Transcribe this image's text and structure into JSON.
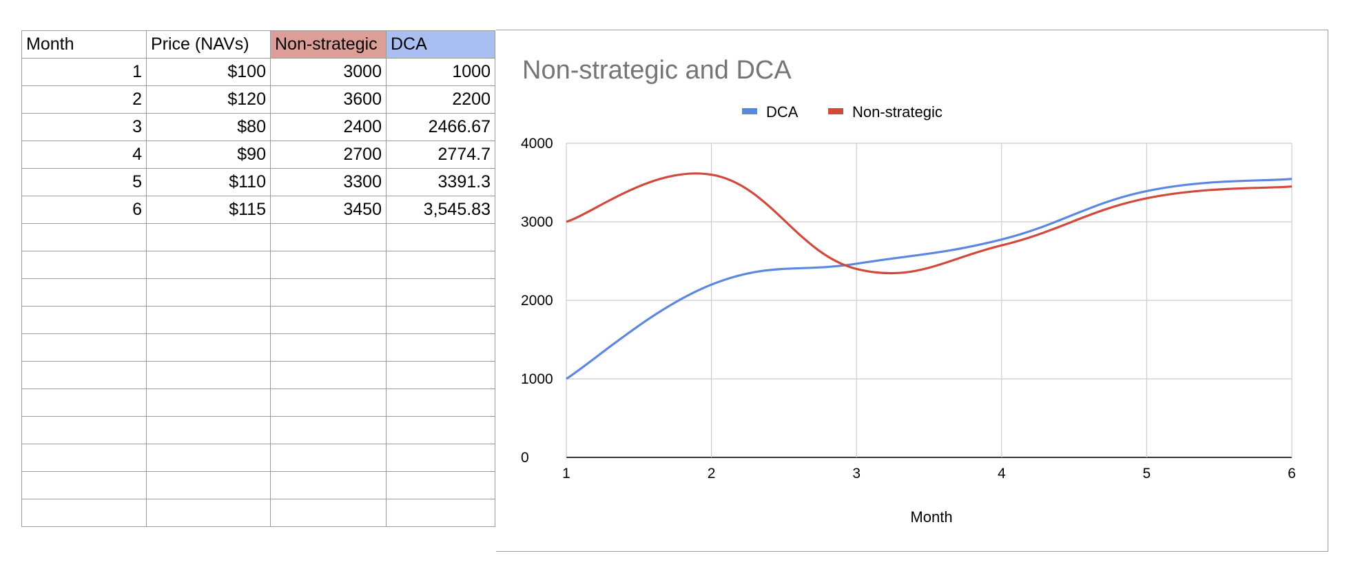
{
  "table": {
    "headers": [
      {
        "label": "Month",
        "bg": ""
      },
      {
        "label": "Price (NAVs)",
        "bg": ""
      },
      {
        "label": "Non-strategic",
        "bg": "#dd9e98"
      },
      {
        "label": "DCA",
        "bg": "#a9bff1"
      }
    ],
    "rows": [
      [
        "1",
        "$100",
        "3000",
        "1000"
      ],
      [
        "2",
        "$120",
        "3600",
        "2200"
      ],
      [
        "3",
        "$80",
        "2400",
        "2466.67"
      ],
      [
        "4",
        "$90",
        "2700",
        "2774.7"
      ],
      [
        "5",
        "$110",
        "3300",
        "3391.3"
      ],
      [
        "6",
        "$115",
        "3450",
        "3,545.83"
      ]
    ],
    "empty_rows": 11
  },
  "chart_data": {
    "type": "line",
    "title": "Non-strategic and DCA",
    "xlabel": "Month",
    "ylabel": "",
    "x": [
      1,
      2,
      3,
      4,
      5,
      6
    ],
    "series": [
      {
        "name": "DCA",
        "color": "#5b87e0",
        "values": [
          1000,
          2200,
          2466.67,
          2774.7,
          3391.3,
          3545.83
        ]
      },
      {
        "name": "Non-strategic",
        "color": "#d2493b",
        "values": [
          3000,
          3600,
          2400,
          2700,
          3300,
          3450
        ]
      }
    ],
    "xlim": [
      1,
      6
    ],
    "ylim": [
      0,
      4000
    ],
    "xticks": [
      "1",
      "2",
      "3",
      "4",
      "5",
      "6"
    ],
    "yticks": [
      "0",
      "1000",
      "2000",
      "3000",
      "4000"
    ],
    "grid": true,
    "smooth": true,
    "legend_position": "top-center",
    "title_color": "#757575"
  }
}
